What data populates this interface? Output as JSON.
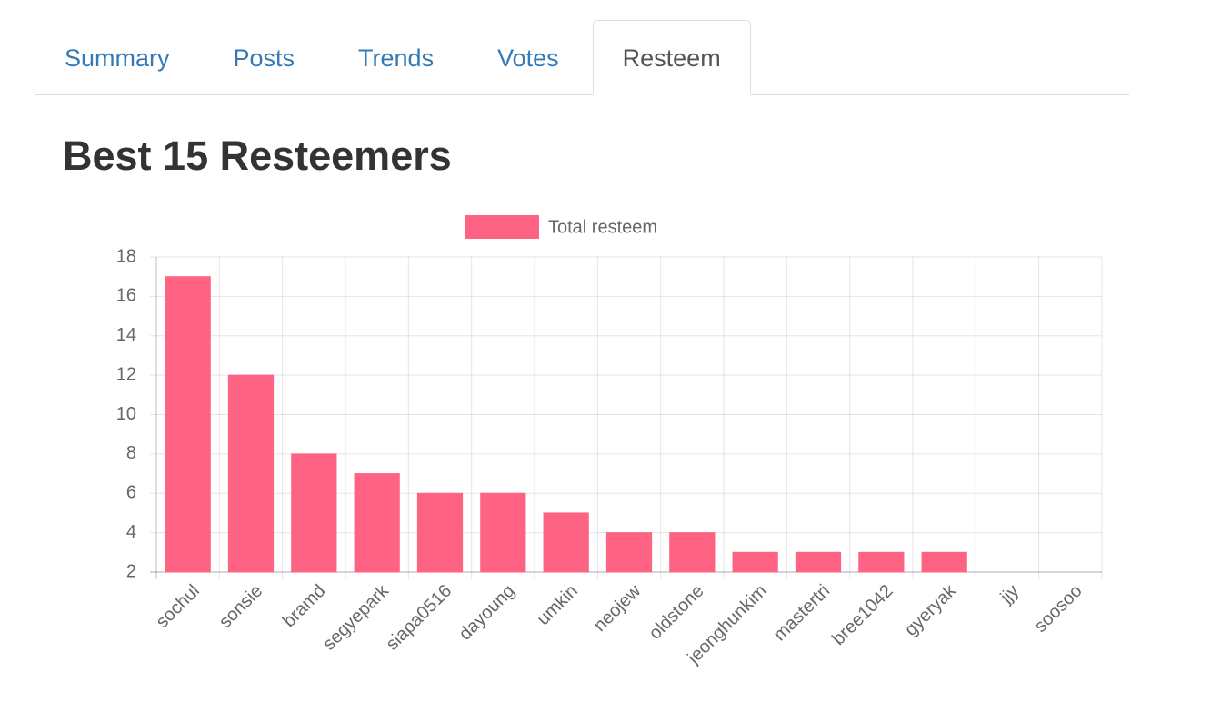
{
  "tabs": [
    "Summary",
    "Posts",
    "Trends",
    "Votes",
    "Resteem"
  ],
  "active_tab": 4,
  "heading": "Best 15 Resteemers",
  "chart_data": {
    "type": "bar",
    "categories": [
      "sochul",
      "sonsie",
      "bramd",
      "segyepark",
      "siapa0516",
      "dayoung",
      "umkin",
      "neojew",
      "oldstone",
      "jeonghunkim",
      "mastertri",
      "bree1042",
      "gyeryak",
      "jjy",
      "soosoo"
    ],
    "series": [
      {
        "name": "Total resteem",
        "color": "#ff6384",
        "values": [
          17,
          12,
          8,
          7,
          6,
          6,
          5,
          4,
          4,
          3,
          3,
          3,
          3,
          2,
          2
        ]
      }
    ],
    "ylim": [
      2,
      18
    ],
    "yticks": [
      2,
      4,
      6,
      8,
      10,
      12,
      14,
      16,
      18
    ],
    "grid": true
  }
}
